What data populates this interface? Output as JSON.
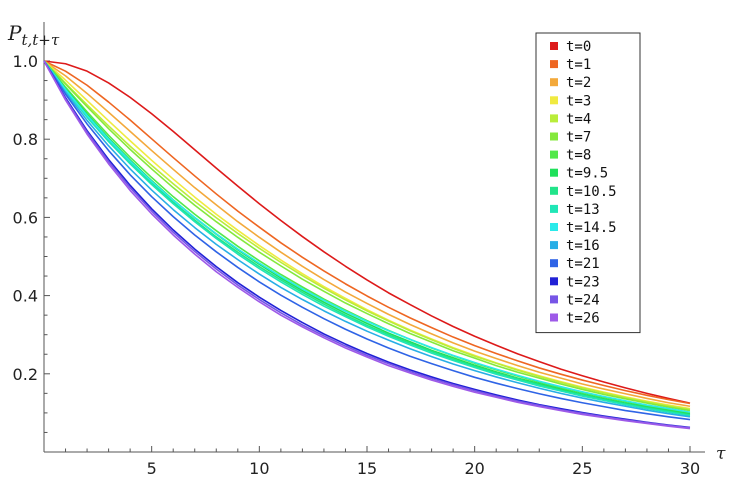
{
  "chart_data": {
    "type": "line",
    "title": "",
    "ylabel": {
      "base": "P",
      "subscript": "t,t+τ"
    },
    "xlabel": "τ",
    "xlim": [
      0,
      30
    ],
    "ylim": [
      0,
      1.0
    ],
    "x_ticks": [
      5,
      10,
      15,
      20,
      25,
      30
    ],
    "y_ticks": [
      0.2,
      0.4,
      0.6,
      0.8,
      1.0
    ],
    "y_tick_labels": [
      "0.2",
      "0.4",
      "0.6",
      "0.8",
      "1.0"
    ],
    "grid": false,
    "legend_position": "top-right",
    "x": [
      0,
      1,
      2,
      3,
      4,
      5,
      6,
      7,
      8,
      9,
      10,
      11,
      12,
      13,
      14,
      15,
      16,
      17,
      18,
      19,
      20,
      21,
      22,
      23,
      24,
      25,
      26,
      27,
      28,
      29,
      30
    ],
    "series": [
      {
        "name": "t=0",
        "color": "#dd1a1a",
        "values": [
          1.0,
          0.993,
          0.974,
          0.944,
          0.907,
          0.865,
          0.82,
          0.773,
          0.726,
          0.68,
          0.635,
          0.592,
          0.551,
          0.512,
          0.475,
          0.44,
          0.407,
          0.377,
          0.348,
          0.321,
          0.296,
          0.273,
          0.251,
          0.231,
          0.212,
          0.195,
          0.179,
          0.164,
          0.15,
          0.137,
          0.125
        ]
      },
      {
        "name": "t=1",
        "color": "#ee6622",
        "values": [
          1.0,
          0.974,
          0.938,
          0.895,
          0.849,
          0.801,
          0.753,
          0.706,
          0.66,
          0.616,
          0.575,
          0.535,
          0.498,
          0.463,
          0.43,
          0.399,
          0.37,
          0.343,
          0.318,
          0.294,
          0.272,
          0.252,
          0.233,
          0.215,
          0.199,
          0.184,
          0.17,
          0.157,
          0.145,
          0.134,
          0.124
        ]
      },
      {
        "name": "t=2",
        "color": "#f3a93b",
        "values": [
          1.0,
          0.962,
          0.917,
          0.869,
          0.82,
          0.771,
          0.723,
          0.676,
          0.632,
          0.589,
          0.549,
          0.511,
          0.475,
          0.441,
          0.409,
          0.38,
          0.352,
          0.326,
          0.302,
          0.279,
          0.258,
          0.239,
          0.221,
          0.204,
          0.189,
          0.174,
          0.161,
          0.149,
          0.137,
          0.126,
          0.117
        ]
      },
      {
        "name": "t=3",
        "color": "#f0ea40",
        "values": [
          1.0,
          0.951,
          0.899,
          0.847,
          0.796,
          0.746,
          0.698,
          0.652,
          0.608,
          0.567,
          0.528,
          0.491,
          0.456,
          0.423,
          0.393,
          0.364,
          0.337,
          0.312,
          0.289,
          0.267,
          0.247,
          0.228,
          0.211,
          0.195,
          0.18,
          0.166,
          0.153,
          0.141,
          0.13,
          0.12,
          0.111
        ]
      },
      {
        "name": "t=4",
        "color": "#b9ed3a",
        "values": [
          1.0,
          0.943,
          0.888,
          0.834,
          0.782,
          0.733,
          0.686,
          0.641,
          0.599,
          0.559,
          0.521,
          0.485,
          0.451,
          0.419,
          0.389,
          0.361,
          0.335,
          0.31,
          0.287,
          0.265,
          0.245,
          0.227,
          0.209,
          0.193,
          0.178,
          0.164,
          0.151,
          0.139,
          0.128,
          0.118,
          0.109
        ]
      },
      {
        "name": "t=7",
        "color": "#84e83c",
        "values": [
          1.0,
          0.941,
          0.883,
          0.827,
          0.774,
          0.724,
          0.676,
          0.631,
          0.589,
          0.549,
          0.511,
          0.476,
          0.442,
          0.411,
          0.381,
          0.354,
          0.328,
          0.303,
          0.281,
          0.259,
          0.24,
          0.221,
          0.204,
          0.189,
          0.174,
          0.16,
          0.147,
          0.136,
          0.125,
          0.115,
          0.106
        ]
      },
      {
        "name": "t=8",
        "color": "#52e84a",
        "values": [
          1.0,
          0.933,
          0.87,
          0.81,
          0.754,
          0.702,
          0.653,
          0.608,
          0.566,
          0.526,
          0.489,
          0.454,
          0.422,
          0.391,
          0.363,
          0.336,
          0.311,
          0.288,
          0.266,
          0.246,
          0.227,
          0.21,
          0.194,
          0.179,
          0.165,
          0.152,
          0.14,
          0.129,
          0.118,
          0.109,
          0.1
        ]
      },
      {
        "name": "t=9.5",
        "color": "#1fe05a",
        "values": [
          1.0,
          0.929,
          0.864,
          0.803,
          0.747,
          0.694,
          0.645,
          0.599,
          0.557,
          0.517,
          0.48,
          0.445,
          0.413,
          0.383,
          0.355,
          0.329,
          0.304,
          0.282,
          0.26,
          0.241,
          0.222,
          0.205,
          0.189,
          0.175,
          0.161,
          0.148,
          0.136,
          0.125,
          0.115,
          0.106,
          0.097
        ]
      },
      {
        "name": "t=10.5",
        "color": "#22e48a",
        "values": [
          1.0,
          0.926,
          0.859,
          0.798,
          0.741,
          0.688,
          0.639,
          0.593,
          0.55,
          0.511,
          0.474,
          0.44,
          0.408,
          0.378,
          0.35,
          0.324,
          0.3,
          0.278,
          0.257,
          0.237,
          0.219,
          0.202,
          0.187,
          0.172,
          0.158,
          0.146,
          0.134,
          0.123,
          0.113,
          0.104,
          0.095
        ]
      },
      {
        "name": "t=13",
        "color": "#20e6b6",
        "values": [
          1.0,
          0.925,
          0.856,
          0.794,
          0.737,
          0.684,
          0.635,
          0.589,
          0.546,
          0.506,
          0.469,
          0.435,
          0.403,
          0.373,
          0.346,
          0.32,
          0.296,
          0.274,
          0.253,
          0.234,
          0.216,
          0.199,
          0.184,
          0.169,
          0.156,
          0.143,
          0.132,
          0.121,
          0.111,
          0.102,
          0.093
        ]
      },
      {
        "name": "t=14.5",
        "color": "#2aeaea",
        "values": [
          1.0,
          0.927,
          0.861,
          0.8,
          0.744,
          0.692,
          0.644,
          0.6,
          0.558,
          0.519,
          0.483,
          0.449,
          0.417,
          0.388,
          0.36,
          0.334,
          0.31,
          0.288,
          0.267,
          0.247,
          0.229,
          0.212,
          0.196,
          0.181,
          0.167,
          0.154,
          0.142,
          0.131,
          0.12,
          0.111,
          0.102
        ]
      },
      {
        "name": "t=16",
        "color": "#28aee6",
        "values": [
          1.0,
          0.92,
          0.848,
          0.783,
          0.724,
          0.67,
          0.62,
          0.574,
          0.531,
          0.492,
          0.455,
          0.421,
          0.39,
          0.361,
          0.334,
          0.309,
          0.286,
          0.264,
          0.244,
          0.225,
          0.208,
          0.192,
          0.177,
          0.163,
          0.15,
          0.138,
          0.127,
          0.117,
          0.107,
          0.098,
          0.09
        ]
      },
      {
        "name": "t=21",
        "color": "#2f64e6",
        "values": [
          1.0,
          0.915,
          0.839,
          0.771,
          0.709,
          0.653,
          0.602,
          0.555,
          0.512,
          0.472,
          0.435,
          0.401,
          0.37,
          0.341,
          0.314,
          0.289,
          0.266,
          0.245,
          0.226,
          0.208,
          0.191,
          0.176,
          0.162,
          0.149,
          0.137,
          0.126,
          0.116,
          0.106,
          0.098,
          0.09,
          0.083
        ]
      },
      {
        "name": "t=23",
        "color": "#2121d6",
        "values": [
          1.0,
          0.906,
          0.822,
          0.748,
          0.682,
          0.622,
          0.568,
          0.519,
          0.474,
          0.433,
          0.396,
          0.362,
          0.331,
          0.302,
          0.276,
          0.252,
          0.23,
          0.21,
          0.192,
          0.175,
          0.16,
          0.146,
          0.133,
          0.121,
          0.111,
          0.101,
          0.092,
          0.084,
          0.076,
          0.069,
          0.063
        ]
      },
      {
        "name": "t=24",
        "color": "#7755e6",
        "values": [
          1.0,
          0.903,
          0.818,
          0.743,
          0.676,
          0.616,
          0.562,
          0.513,
          0.468,
          0.427,
          0.39,
          0.356,
          0.325,
          0.297,
          0.271,
          0.247,
          0.226,
          0.206,
          0.188,
          0.172,
          0.157,
          0.143,
          0.13,
          0.119,
          0.108,
          0.099,
          0.09,
          0.082,
          0.075,
          0.068,
          0.062
        ]
      },
      {
        "name": "t=26",
        "color": "#9e5ae8",
        "values": [
          1.0,
          0.9,
          0.813,
          0.737,
          0.669,
          0.609,
          0.555,
          0.506,
          0.461,
          0.421,
          0.384,
          0.35,
          0.32,
          0.292,
          0.266,
          0.243,
          0.221,
          0.202,
          0.184,
          0.168,
          0.153,
          0.14,
          0.127,
          0.116,
          0.106,
          0.096,
          0.088,
          0.08,
          0.073,
          0.066,
          0.06
        ]
      }
    ]
  }
}
